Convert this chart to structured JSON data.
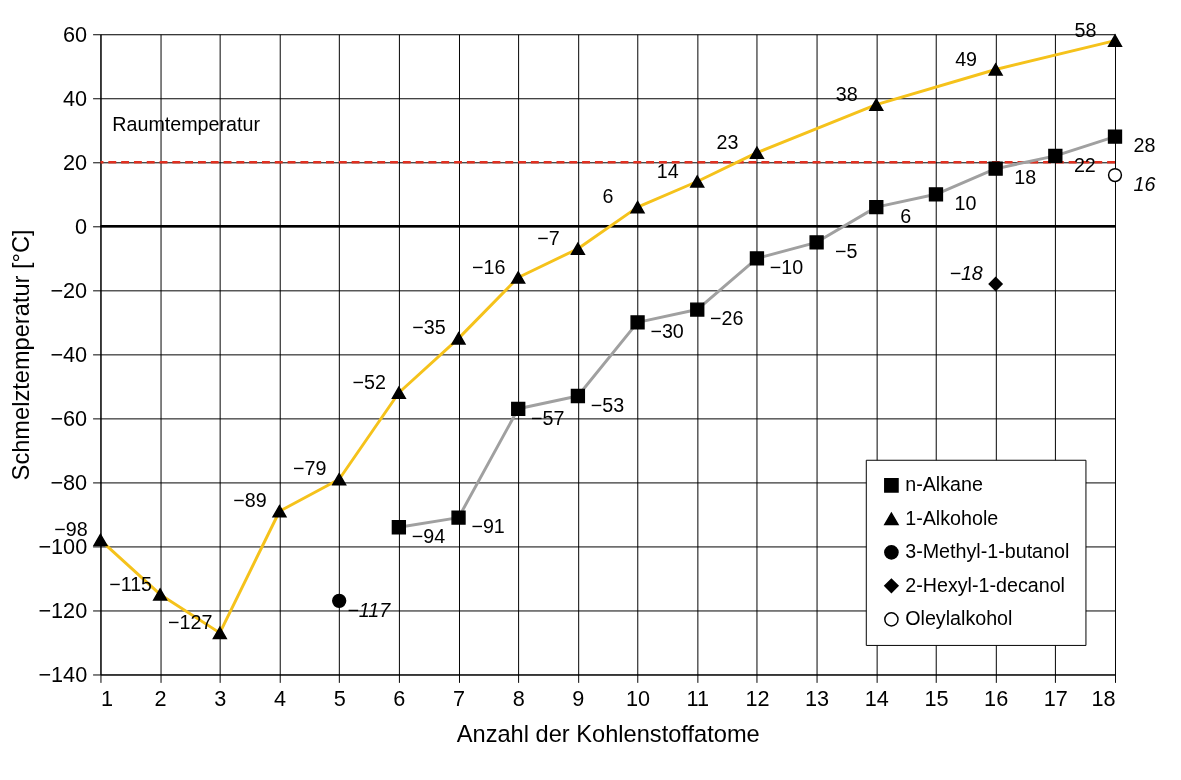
{
  "chart_data": {
    "type": "line",
    "xlabel": "Anzahl der Kohlenstoffatome",
    "ylabel": "Schmelztemperatur [°C]",
    "xlim": [
      1,
      18
    ],
    "xticks": [
      1,
      2,
      3,
      4,
      5,
      6,
      7,
      8,
      9,
      10,
      11,
      12,
      13,
      14,
      15,
      16,
      17,
      18
    ],
    "ylim": [
      -140,
      60
    ],
    "yticks": [
      -140,
      -120,
      -100,
      -80,
      -60,
      -40,
      -20,
      0,
      20,
      40,
      60
    ],
    "grid": true,
    "legend": "bottom right",
    "data_labels": true,
    "ref_lines": [
      {
        "axis": "y",
        "value": 20,
        "label": "Raumtemperatur",
        "color": "#e03020",
        "line_style": "dashed"
      },
      {
        "axis": "y",
        "value": 0,
        "color": "#000000",
        "line_style": "solid"
      }
    ],
    "series": [
      {
        "name": "n-Alkane",
        "type": "line",
        "marker": "square",
        "color": "#a0a0a0",
        "x": [
          6,
          7,
          8,
          9,
          10,
          11,
          12,
          13,
          14,
          15,
          16,
          17,
          18
        ],
        "values": [
          -94,
          -91,
          -57,
          -53,
          -30,
          -26,
          -10,
          -5,
          6,
          10,
          18,
          22,
          28
        ]
      },
      {
        "name": "1-Alkohole",
        "type": "line",
        "marker": "triangle",
        "color": "#f5c21b",
        "x": [
          1,
          2,
          3,
          4,
          5,
          6,
          7,
          8,
          9,
          10,
          11,
          12,
          14,
          16,
          18
        ],
        "values": [
          -98,
          -115,
          -127,
          -89,
          -79,
          -52,
          -35,
          -16,
          -7,
          6,
          14,
          23,
          38,
          49,
          58
        ]
      },
      {
        "name": "3-Methyl-1-butanol",
        "type": "scatter",
        "marker": "circle",
        "color": "#000000",
        "x": [
          5
        ],
        "values": [
          -117
        ]
      },
      {
        "name": "2-Hexyl-1-decanol",
        "type": "scatter",
        "marker": "diamond",
        "color": "#000000",
        "x": [
          16
        ],
        "values": [
          -18
        ]
      },
      {
        "name": "Oleylalkohol",
        "type": "scatter",
        "marker": "circle",
        "color": "#ffffff",
        "x": [
          18
        ],
        "values": [
          16
        ]
      }
    ]
  }
}
